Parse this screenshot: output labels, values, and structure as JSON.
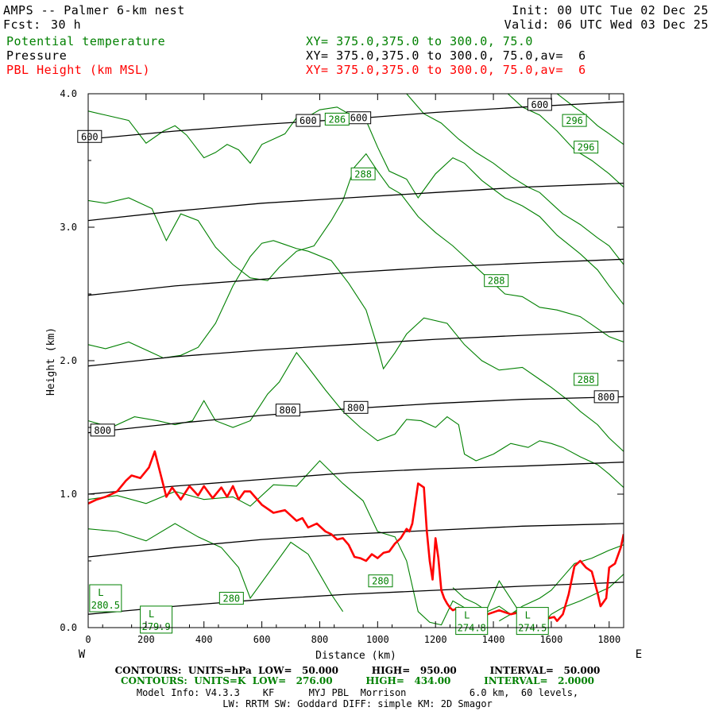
{
  "header": {
    "title": "AMPS -- Palmer 6-km nest",
    "init": "Init: 00 UTC Tue 02 Dec 25",
    "fcst_label": "Fcst:",
    "fcst_value": "30 h",
    "valid": "Valid: 06 UTC Wed 03 Dec 25",
    "fields": [
      {
        "name": "Potential temperature",
        "xy": "XY= 375.0,375.0 to 300.0, 75.0",
        "color": "#008000"
      },
      {
        "name": "Pressure",
        "xy": "XY= 375.0,375.0 to 300.0, 75.0,av=  6",
        "color": "#000000"
      },
      {
        "name": "PBL Height (km MSL)",
        "xy": "XY= 375.0,375.0 to 300.0, 75.0,av=  6",
        "color": "#ff0000"
      }
    ]
  },
  "footer": {
    "line1": "CONTOURS:  UNITS=hPa  LOW=   50.000          HIGH=   950.00          INTERVAL=   50.000",
    "line2": "CONTOURS:  UNITS=K  LOW=   276.00          HIGH=   434.00          INTERVAL=   2.0000",
    "line3": "Model Info: V4.3.3    KF      MYJ PBL  Morrison           6.0 km,  60 levels,",
    "line4": "LW: RRTM SW: Goddard DIFF: simple KM: 2D Smagor"
  },
  "chart_data": {
    "type": "line",
    "title": "",
    "xlabel": "Distance (km)",
    "ylabel": "Height (km)",
    "xlim": [
      0,
      1850
    ],
    "ylim": [
      0,
      4.0
    ],
    "x_ticks": [
      0,
      200,
      400,
      600,
      800,
      1000,
      1200,
      1400,
      1600,
      1800
    ],
    "y_ticks": [
      0.0,
      1.0,
      2.0,
      3.0,
      4.0
    ],
    "y_tick_labels": [
      "0.0",
      "1.0",
      "2.0",
      "3.0",
      "4.0"
    ],
    "x_end_labels": {
      "left": "W",
      "right": "E"
    },
    "grid": false,
    "pressure_isobars": {
      "color": "#000000",
      "lines": [
        {
          "x": [
            0,
            300,
            600,
            900,
            1200,
            1500,
            1850
          ],
          "y": [
            3.66,
            3.72,
            3.77,
            3.81,
            3.86,
            3.9,
            3.94
          ],
          "label": "600"
        },
        {
          "x": [
            0,
            300,
            600,
            900,
            1200,
            1500,
            1850
          ],
          "y": [
            3.05,
            3.12,
            3.18,
            3.22,
            3.26,
            3.3,
            3.33
          ]
        },
        {
          "x": [
            0,
            300,
            600,
            900,
            1200,
            1500,
            1850
          ],
          "y": [
            2.49,
            2.56,
            2.61,
            2.66,
            2.7,
            2.73,
            2.76
          ]
        },
        {
          "x": [
            0,
            300,
            600,
            900,
            1200,
            1500,
            1850
          ],
          "y": [
            1.96,
            2.03,
            2.08,
            2.12,
            2.16,
            2.19,
            2.22
          ]
        },
        {
          "x": [
            0,
            300,
            600,
            900,
            1200,
            1500,
            1850
          ],
          "y": [
            1.46,
            1.53,
            1.59,
            1.64,
            1.68,
            1.71,
            1.73
          ],
          "label": "800"
        },
        {
          "x": [
            0,
            300,
            600,
            900,
            1200,
            1500,
            1850
          ],
          "y": [
            1.0,
            1.06,
            1.11,
            1.16,
            1.19,
            1.21,
            1.24
          ]
        },
        {
          "x": [
            0,
            300,
            600,
            900,
            1200,
            1500,
            1850
          ],
          "y": [
            0.53,
            0.6,
            0.66,
            0.7,
            0.73,
            0.76,
            0.78
          ]
        },
        {
          "x": [
            0,
            300,
            600,
            900,
            1200,
            1500,
            1850
          ],
          "y": [
            0.1,
            0.16,
            0.21,
            0.25,
            0.28,
            0.31,
            0.34
          ]
        }
      ],
      "labels": [
        {
          "text": "600",
          "x": 5,
          "y": 3.68
        },
        {
          "text": "600",
          "x": 760,
          "y": 3.8
        },
        {
          "text": "600",
          "x": 935,
          "y": 3.82
        },
        {
          "text": "600",
          "x": 1560,
          "y": 3.92
        },
        {
          "text": "800",
          "x": 50,
          "y": 1.48
        },
        {
          "text": "800",
          "x": 690,
          "y": 1.63
        },
        {
          "text": "800",
          "x": 925,
          "y": 1.65
        },
        {
          "text": "800",
          "x": 1790,
          "y": 1.73
        }
      ]
    },
    "theta_isentropes": {
      "color": "#008000",
      "lines": [
        {
          "x": [
            0,
            100,
            200,
            300,
            380,
            460,
            520,
            560,
            620,
            700,
            760,
            800,
            840,
            880
          ],
          "y": [
            0.74,
            0.72,
            0.65,
            0.78,
            0.68,
            0.6,
            0.45,
            0.22,
            0.4,
            0.64,
            0.55,
            0.4,
            0.25,
            0.12
          ]
        },
        {
          "x": [
            0,
            100,
            200,
            300,
            400,
            500,
            560,
            640,
            720,
            800,
            880,
            950,
            1000,
            1060,
            1100,
            1140,
            1180,
            1220,
            1260,
            1300,
            1360,
            1420,
            1480,
            1520
          ],
          "y": [
            0.96,
            0.99,
            0.93,
            1.02,
            0.96,
            0.98,
            0.91,
            1.07,
            1.06,
            1.25,
            1.08,
            0.95,
            0.72,
            0.68,
            0.5,
            0.12,
            0.04,
            0.02,
            0.2,
            0.15,
            0.05,
            0.35,
            0.15,
            0.0
          ]
        },
        {
          "x": [
            0,
            80,
            160,
            240,
            300,
            360,
            400,
            440,
            500,
            560,
            620,
            660,
            720,
            760,
            820,
            880,
            940,
            1000,
            1060,
            1100,
            1150,
            1200,
            1240,
            1280,
            1300,
            1340,
            1400,
            1460,
            1520,
            1560,
            1600,
            1640,
            1700,
            1760,
            1800,
            1850
          ],
          "y": [
            1.55,
            1.5,
            1.58,
            1.55,
            1.52,
            1.55,
            1.7,
            1.55,
            1.5,
            1.55,
            1.75,
            1.84,
            2.06,
            1.95,
            1.78,
            1.62,
            1.5,
            1.4,
            1.45,
            1.56,
            1.55,
            1.5,
            1.58,
            1.52,
            1.3,
            1.25,
            1.3,
            1.38,
            1.35,
            1.4,
            1.38,
            1.35,
            1.28,
            1.22,
            1.15,
            1.05
          ]
        },
        {
          "x": [
            0,
            60,
            140,
            220,
            260,
            320,
            380,
            440,
            500,
            560,
            600,
            640,
            680,
            720,
            760,
            840,
            900,
            960,
            1000,
            1020,
            1060,
            1100,
            1160,
            1240,
            1300,
            1360,
            1420,
            1500,
            1560,
            1600,
            1660,
            1700,
            1760,
            1800,
            1850
          ],
          "y": [
            2.12,
            2.09,
            2.14,
            2.06,
            2.02,
            2.04,
            2.1,
            2.28,
            2.56,
            2.78,
            2.88,
            2.9,
            2.87,
            2.84,
            2.82,
            2.75,
            2.58,
            2.38,
            2.1,
            1.94,
            2.06,
            2.2,
            2.32,
            2.28,
            2.12,
            2.0,
            1.93,
            1.95,
            1.86,
            1.8,
            1.7,
            1.62,
            1.52,
            1.42,
            1.32
          ]
        },
        {
          "x": [
            0,
            60,
            140,
            220,
            270,
            320,
            380,
            440,
            500,
            560,
            620,
            660,
            720,
            780,
            840,
            880,
            920,
            960,
            1000,
            1040,
            1080,
            1140,
            1200,
            1260,
            1300,
            1380,
            1440,
            1500,
            1560,
            1620,
            1700,
            1760,
            1800,
            1850
          ],
          "y": [
            3.2,
            3.18,
            3.22,
            3.14,
            2.9,
            3.1,
            3.05,
            2.85,
            2.72,
            2.62,
            2.6,
            2.7,
            2.82,
            2.86,
            3.05,
            3.2,
            3.45,
            3.55,
            3.42,
            3.3,
            3.25,
            3.08,
            2.96,
            2.86,
            2.78,
            2.62,
            2.5,
            2.48,
            2.4,
            2.38,
            2.33,
            2.24,
            2.18,
            2.14
          ]
        },
        {
          "x": [
            0,
            60,
            140,
            200,
            260,
            300,
            340,
            400,
            440,
            480,
            520,
            560,
            600,
            640,
            680,
            720,
            760,
            800,
            860,
            900,
            960,
            1000,
            1040,
            1100,
            1140,
            1200,
            1260,
            1300,
            1360,
            1440,
            1500,
            1560,
            1620,
            1700,
            1760,
            1800,
            1850
          ],
          "y": [
            3.87,
            3.84,
            3.8,
            3.63,
            3.72,
            3.76,
            3.69,
            3.52,
            3.56,
            3.62,
            3.58,
            3.48,
            3.62,
            3.66,
            3.7,
            3.82,
            3.83,
            3.88,
            3.9,
            3.85,
            3.8,
            3.6,
            3.42,
            3.36,
            3.22,
            3.4,
            3.52,
            3.48,
            3.35,
            3.22,
            3.16,
            3.08,
            2.94,
            2.8,
            2.68,
            2.56,
            2.42
          ]
        },
        {
          "x": [
            1100,
            1160,
            1220,
            1280,
            1340,
            1400,
            1460,
            1520,
            1560,
            1600,
            1640,
            1700,
            1760,
            1800,
            1850
          ],
          "y": [
            4.0,
            3.85,
            3.78,
            3.66,
            3.56,
            3.48,
            3.38,
            3.3,
            3.26,
            3.18,
            3.1,
            3.02,
            2.92,
            2.86,
            2.72
          ]
        },
        {
          "x": [
            1450,
            1500,
            1560,
            1620,
            1680,
            1740,
            1800,
            1850
          ],
          "y": [
            4.0,
            3.9,
            3.84,
            3.72,
            3.58,
            3.5,
            3.4,
            3.3
          ]
        },
        {
          "x": [
            1620,
            1680,
            1720,
            1760,
            1800,
            1850
          ],
          "y": [
            4.0,
            3.9,
            3.84,
            3.76,
            3.7,
            3.62
          ]
        },
        {
          "x": [
            1260,
            1300,
            1340,
            1380,
            1420,
            1460,
            1500,
            1540,
            1580,
            1600,
            1640,
            1700,
            1760,
            1800,
            1850
          ],
          "y": [
            0.3,
            0.22,
            0.18,
            0.12,
            0.16,
            0.1,
            0.14,
            0.08,
            0.05,
            0.1,
            0.15,
            0.2,
            0.26,
            0.3,
            0.4
          ]
        },
        {
          "x": [
            1420,
            1460,
            1500,
            1560,
            1600,
            1640,
            1680,
            1740,
            1800,
            1850
          ],
          "y": [
            0.05,
            0.1,
            0.16,
            0.22,
            0.28,
            0.38,
            0.48,
            0.52,
            0.58,
            0.62
          ]
        }
      ],
      "labels": [
        {
          "text": "286",
          "x": 860,
          "y": 3.81
        },
        {
          "text": "288",
          "x": 950,
          "y": 3.4
        },
        {
          "text": "296",
          "x": 1680,
          "y": 3.8
        },
        {
          "text": "296",
          "x": 1720,
          "y": 3.6
        },
        {
          "text": "288",
          "x": 1410,
          "y": 2.6
        },
        {
          "text": "288",
          "x": 1720,
          "y": 1.86
        },
        {
          "text": "280",
          "x": 1010,
          "y": 0.35
        },
        {
          "text": "280",
          "x": 495,
          "y": 0.22
        }
      ],
      "lows": [
        {
          "text": "L",
          "value": "280.5",
          "x": 60,
          "y": 0.22
        },
        {
          "text": "L",
          "value": "279.9",
          "x": 235,
          "y": 0.06
        },
        {
          "text": "L",
          "value": "274.8",
          "x": 1325,
          "y": 0.05
        },
        {
          "text": "L",
          "value": "274.5",
          "x": 1535,
          "y": 0.05
        }
      ]
    },
    "pbl_height": {
      "name": "PBL Height (km MSL)",
      "color": "#ff0000",
      "x": [
        0,
        30,
        60,
        100,
        130,
        150,
        180,
        210,
        230,
        250,
        270,
        290,
        320,
        350,
        380,
        400,
        430,
        460,
        480,
        500,
        520,
        540,
        560,
        600,
        640,
        680,
        720,
        740,
        760,
        790,
        820,
        840,
        860,
        880,
        900,
        920,
        940,
        960,
        980,
        1000,
        1020,
        1040,
        1060,
        1080,
        1100,
        1110,
        1120,
        1140,
        1160,
        1170,
        1180,
        1190,
        1200,
        1210,
        1220,
        1230,
        1240,
        1250,
        1260,
        1280,
        1300,
        1340,
        1380,
        1420,
        1460,
        1500,
        1530,
        1560,
        1590,
        1610,
        1620,
        1640,
        1660,
        1680,
        1700,
        1720,
        1740,
        1760,
        1770,
        1790,
        1800,
        1820,
        1840,
        1850
      ],
      "y": [
        0.93,
        0.96,
        0.98,
        1.02,
        1.1,
        1.14,
        1.12,
        1.2,
        1.32,
        1.15,
        0.98,
        1.05,
        0.96,
        1.06,
        0.99,
        1.06,
        0.97,
        1.05,
        0.98,
        1.06,
        0.96,
        1.02,
        1.02,
        0.92,
        0.86,
        0.88,
        0.8,
        0.82,
        0.75,
        0.78,
        0.72,
        0.7,
        0.66,
        0.67,
        0.62,
        0.53,
        0.52,
        0.5,
        0.55,
        0.52,
        0.56,
        0.57,
        0.63,
        0.67,
        0.74,
        0.72,
        0.78,
        1.08,
        1.05,
        0.72,
        0.5,
        0.36,
        0.67,
        0.52,
        0.28,
        0.22,
        0.18,
        0.15,
        0.13,
        0.15,
        0.11,
        0.14,
        0.1,
        0.13,
        0.1,
        0.12,
        0.09,
        0.1,
        0.07,
        0.08,
        0.05,
        0.1,
        0.25,
        0.46,
        0.5,
        0.45,
        0.42,
        0.26,
        0.16,
        0.22,
        0.45,
        0.48,
        0.6,
        0.7
      ]
    }
  }
}
